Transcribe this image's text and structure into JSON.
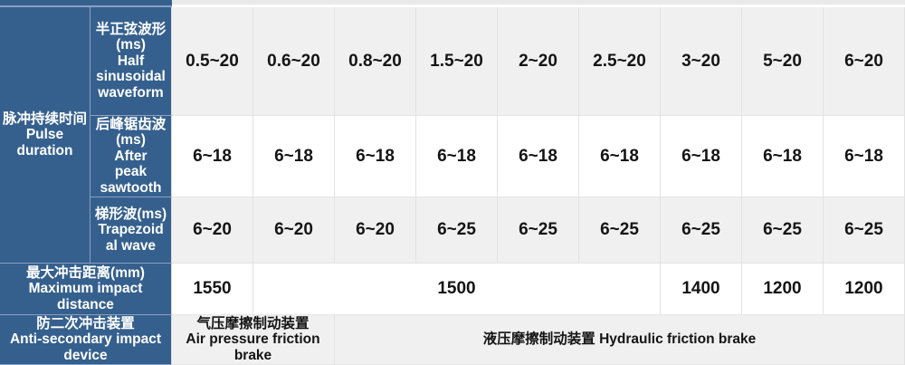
{
  "colors": {
    "header_bg": "#35608E",
    "header_border": "#8AA0C2",
    "band_gray": "#F0F0F0",
    "band_white": "#FFFFFF",
    "grid_line": "#E2E2E2",
    "value_text": "#141414",
    "header_text": "#FFFFFF"
  },
  "pulse": {
    "label": "脉冲持续时间\nPulse\nduration",
    "waveforms": [
      {
        "label": "半正弦波形\n(ms)\nHalf\nsinusoidal\nwaveform",
        "values": [
          "0.5~20",
          "0.6~20",
          "0.8~20",
          "1.5~20",
          "2~20",
          "2.5~20",
          "3~20",
          "5~20",
          "6~20"
        ]
      },
      {
        "label": "后峰锯齿波\n(ms)\nAfter\npeak\nsawtooth",
        "values": [
          "6~18",
          "6~18",
          "6~18",
          "6~18",
          "6~18",
          "6~18",
          "6~18",
          "6~18",
          "6~18"
        ]
      },
      {
        "label": "梯形波(ms)\nTrapezoid\nal wave",
        "values": [
          "6~20",
          "6~20",
          "6~20",
          "6~25",
          "6~25",
          "6~25",
          "6~25",
          "6~25",
          "6~25"
        ]
      }
    ]
  },
  "distance": {
    "label": "最大冲击距离(mm)\nMaximum impact\ndistance",
    "cells": [
      {
        "text": "1550",
        "span_cols": 1
      },
      {
        "text": "1500",
        "span_cols": 5
      },
      {
        "text": "1400",
        "span_cols": 1
      },
      {
        "text": "1200",
        "span_cols": 1
      },
      {
        "text": "1200",
        "span_cols": 1
      }
    ]
  },
  "anti": {
    "label": "防二次冲击装置\nAnti-secondary impact\ndevice",
    "cells": [
      {
        "text": "气压摩擦制动装置\nAir pressure friction\nbrake",
        "span_cols": 2
      },
      {
        "text": "液压摩擦制动装置 Hydraulic friction brake",
        "span_cols": 7
      }
    ]
  }
}
